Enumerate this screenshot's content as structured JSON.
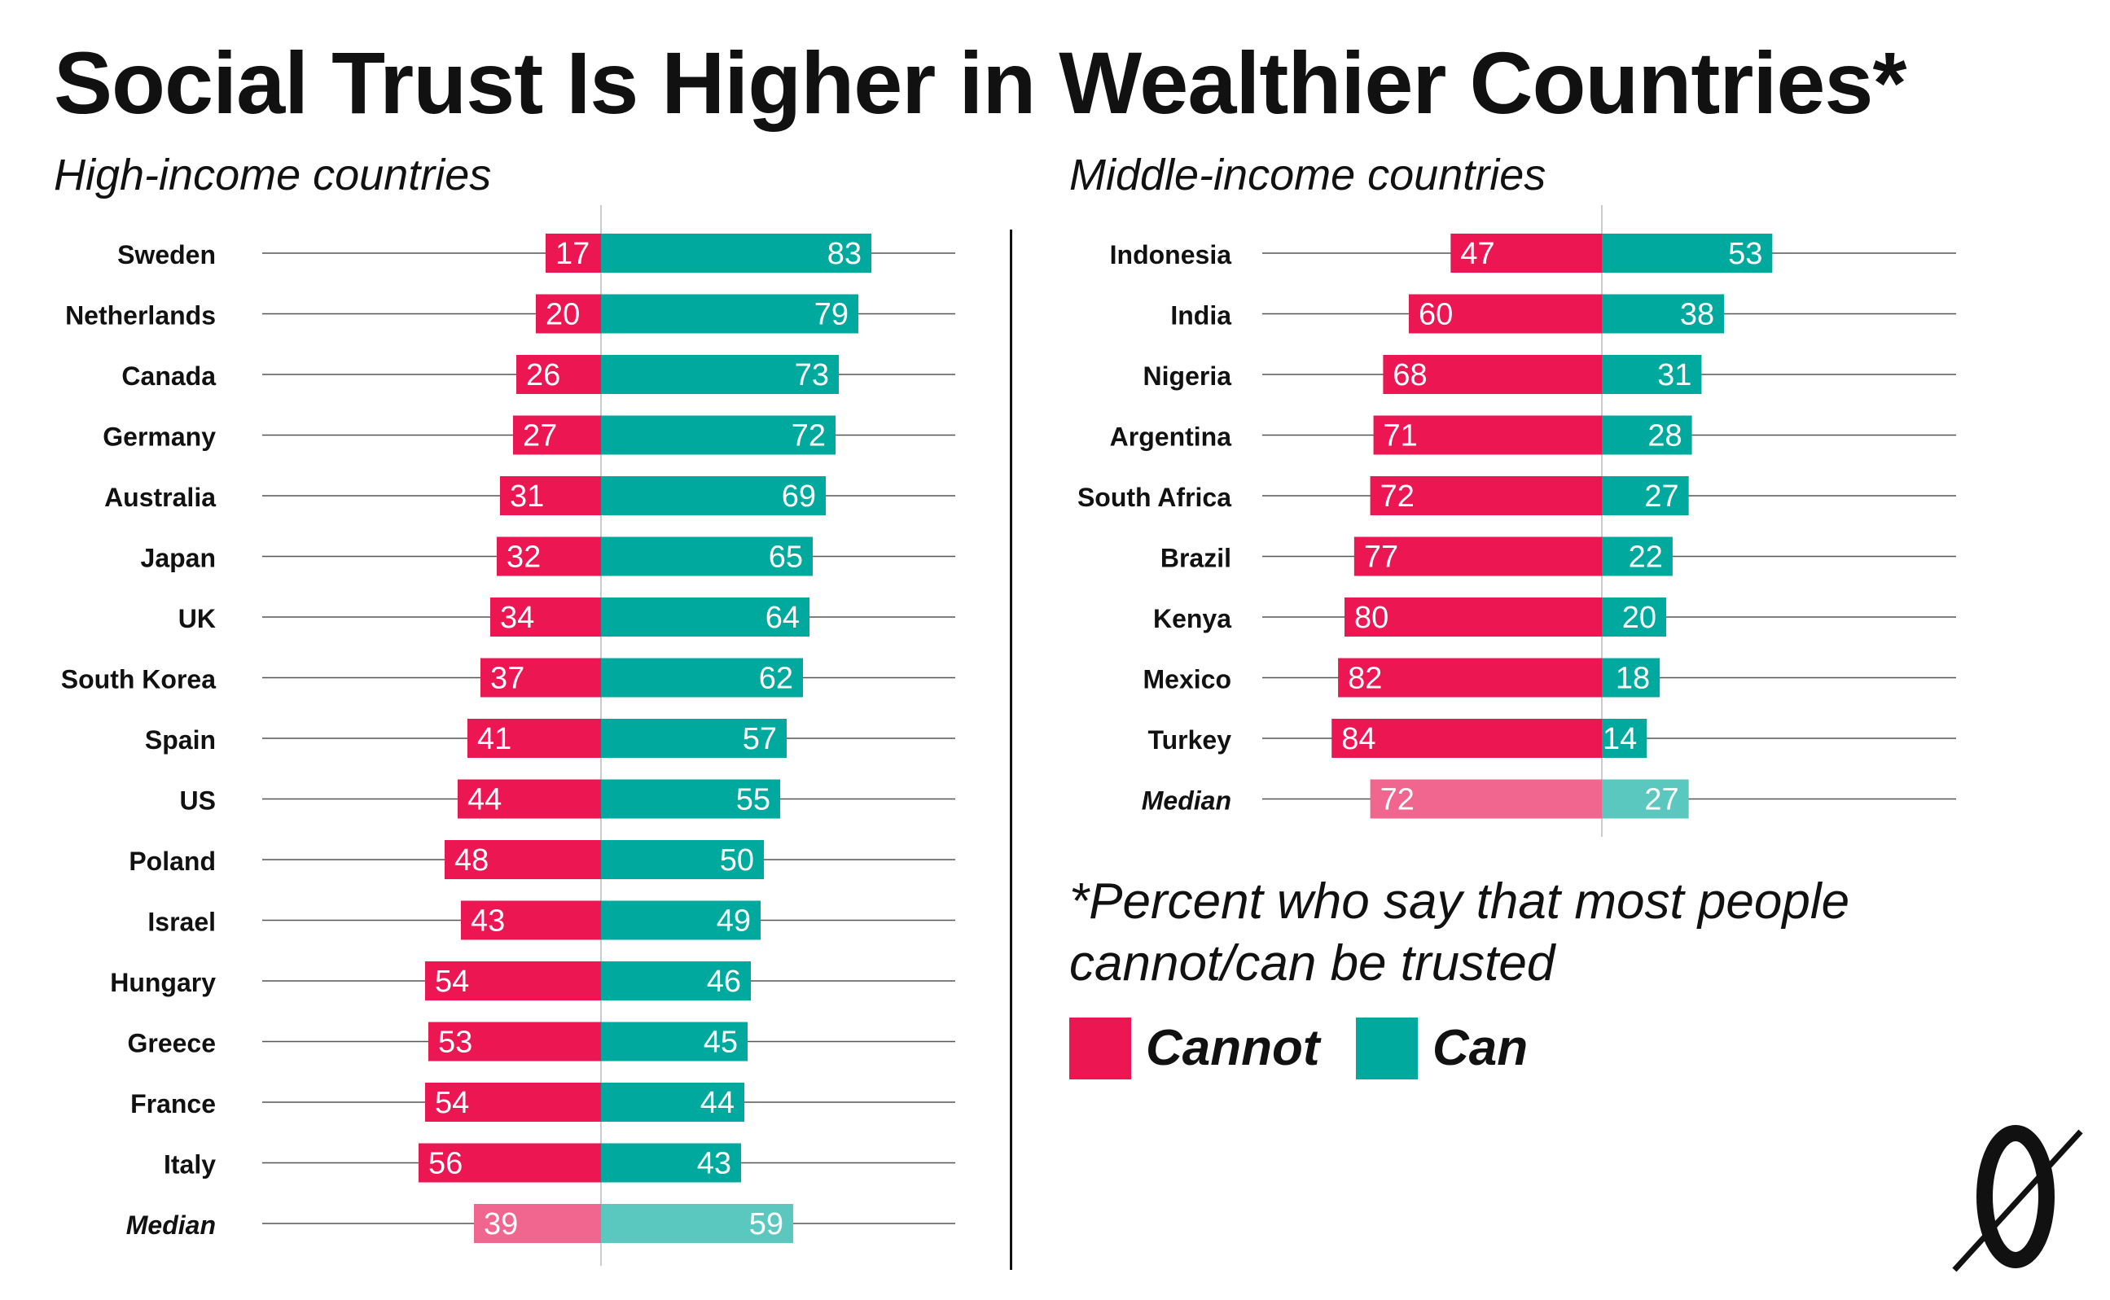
{
  "title": "Social Trust Is Higher in Wealthier Countries*",
  "colors": {
    "cannot": "#EC1652",
    "can": "#00A99D",
    "cannot_median": "#F0668F",
    "can_median": "#5BC8BF",
    "text": "#111111",
    "gridline": "#555555"
  },
  "footnote": "*Percent who say that most people cannot/can be trusted",
  "legend": [
    {
      "label": "Cannot",
      "color_key": "cannot"
    },
    {
      "label": "Can",
      "color_key": "can"
    }
  ],
  "logo": "0",
  "chart_data": [
    {
      "type": "bar",
      "title": "High-income countries",
      "categories": [
        "Sweden",
        "Netherlands",
        "Canada",
        "Germany",
        "Australia",
        "Japan",
        "UK",
        "South Korea",
        "Spain",
        "US",
        "Poland",
        "Israel",
        "Hungary",
        "Greece",
        "France",
        "Italy",
        "Median"
      ],
      "series": [
        {
          "name": "Cannot",
          "values": [
            17,
            20,
            26,
            27,
            31,
            32,
            34,
            37,
            41,
            44,
            48,
            43,
            54,
            53,
            54,
            56,
            39
          ]
        },
        {
          "name": "Can",
          "values": [
            83,
            79,
            73,
            72,
            69,
            65,
            64,
            62,
            57,
            55,
            50,
            49,
            46,
            45,
            44,
            43,
            59
          ]
        }
      ],
      "median_category": "Median"
    },
    {
      "type": "bar",
      "title": "Middle-income countries",
      "categories": [
        "Indonesia",
        "India",
        "Nigeria",
        "Argentina",
        "South Africa",
        "Brazil",
        "Kenya",
        "Mexico",
        "Turkey",
        "Median"
      ],
      "series": [
        {
          "name": "Cannot",
          "values": [
            47,
            60,
            68,
            71,
            72,
            77,
            80,
            82,
            84,
            72
          ]
        },
        {
          "name": "Can",
          "values": [
            53,
            38,
            31,
            28,
            27,
            22,
            20,
            18,
            14,
            27
          ]
        }
      ],
      "median_category": "Median"
    }
  ]
}
